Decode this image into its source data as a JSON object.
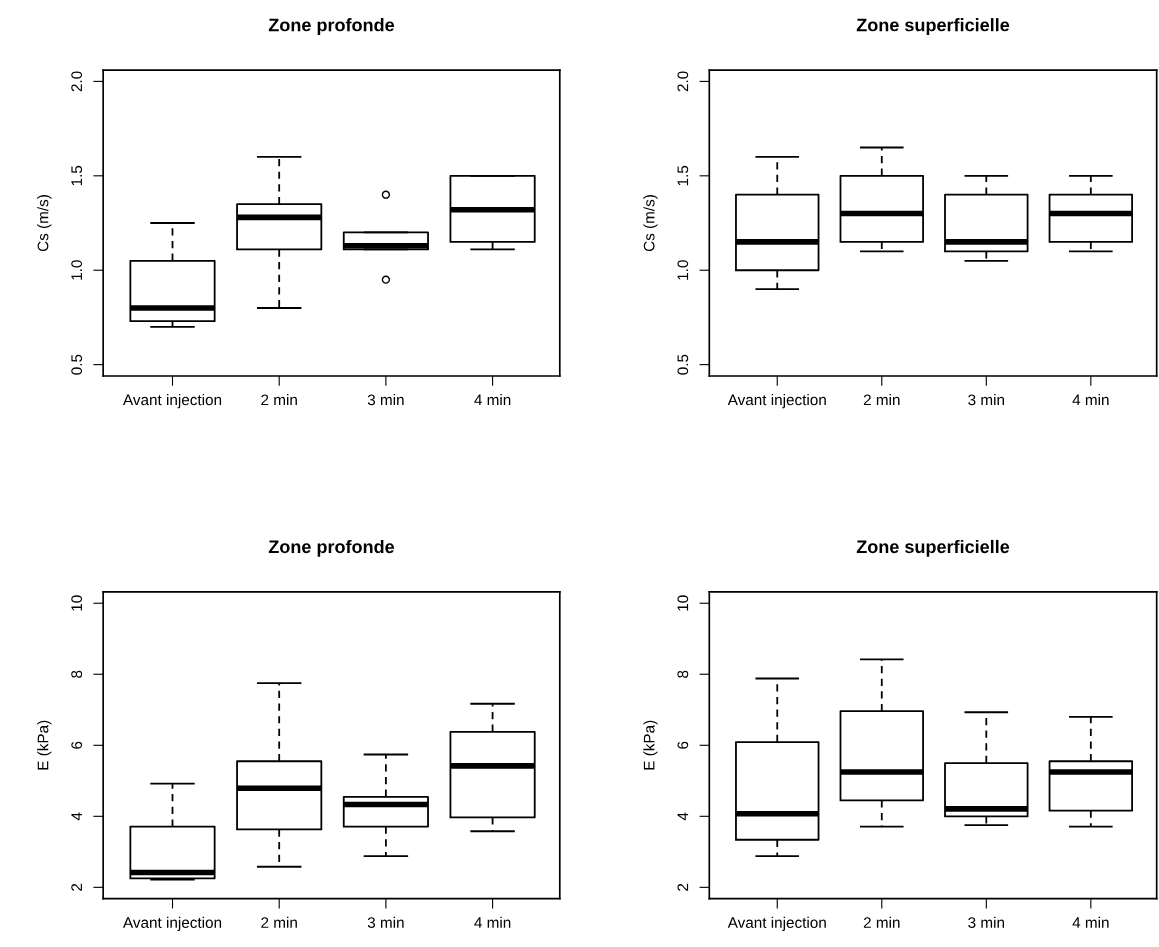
{
  "chart_data": [
    {
      "type": "box",
      "title": "Zone profonde",
      "ylabel": "Cs (m/s)",
      "categories": [
        "Avant injection",
        "2 min",
        "3 min",
        "4 min"
      ],
      "ylim": [
        0.44,
        2.06
      ],
      "yticks": [
        {
          "value": 0.5,
          "label": "0.5"
        },
        {
          "value": 1.0,
          "label": "1.0"
        },
        {
          "value": 1.5,
          "label": "1.5"
        },
        {
          "value": 2.0,
          "label": "2.0"
        }
      ],
      "grid": false,
      "boxes": [
        {
          "low": 0.7,
          "q1": 0.73,
          "median": 0.8,
          "q3": 1.05,
          "high": 1.25
        },
        {
          "low": 0.8,
          "q1": 1.11,
          "median": 1.28,
          "q3": 1.35,
          "high": 1.6
        },
        {
          "low": 1.11,
          "q1": 1.11,
          "median": 1.13,
          "q3": 1.2,
          "high": 1.2,
          "outliers": [
            0.95,
            1.4
          ]
        },
        {
          "low": 1.11,
          "q1": 1.15,
          "median": 1.32,
          "q3": 1.5,
          "high": 1.5
        }
      ]
    },
    {
      "type": "box",
      "title": "Zone superficielle",
      "ylabel": "Cs (m/s)",
      "categories": [
        "Avant injection",
        "2 min",
        "3 min",
        "4 min"
      ],
      "ylim": [
        0.44,
        2.06
      ],
      "yticks": [
        {
          "value": 0.5,
          "label": "0.5"
        },
        {
          "value": 1.0,
          "label": "1.0"
        },
        {
          "value": 1.5,
          "label": "1.5"
        },
        {
          "value": 2.0,
          "label": "2.0"
        }
      ],
      "grid": false,
      "boxes": [
        {
          "low": 0.9,
          "q1": 1.0,
          "median": 1.15,
          "q3": 1.4,
          "high": 1.6
        },
        {
          "low": 1.1,
          "q1": 1.15,
          "median": 1.3,
          "q3": 1.5,
          "high": 1.65
        },
        {
          "low": 1.05,
          "q1": 1.1,
          "median": 1.15,
          "q3": 1.4,
          "high": 1.5
        },
        {
          "low": 1.1,
          "q1": 1.15,
          "median": 1.3,
          "q3": 1.4,
          "high": 1.5
        }
      ]
    },
    {
      "type": "box",
      "title": "Zone profonde",
      "ylabel": "E (kPa)",
      "categories": [
        "Avant injection",
        "2 min",
        "3 min",
        "4 min"
      ],
      "ylim": [
        1.68,
        10.32
      ],
      "yticks": [
        2,
        4,
        6,
        8,
        10
      ],
      "grid": false,
      "boxes": [
        {
          "low": 2.22,
          "q1": 2.25,
          "median": 2.42,
          "q3": 3.71,
          "high": 4.92
        },
        {
          "low": 2.58,
          "q1": 3.63,
          "median": 4.79,
          "q3": 5.55,
          "high": 7.75
        },
        {
          "low": 2.88,
          "q1": 3.71,
          "median": 4.33,
          "q3": 4.55,
          "high": 5.74
        },
        {
          "low": 3.58,
          "q1": 3.97,
          "median": 5.42,
          "q3": 6.38,
          "high": 7.17
        }
      ]
    },
    {
      "type": "box",
      "title": "Zone superficielle",
      "ylabel": "E (kPa)",
      "categories": [
        "Avant injection",
        "2 min",
        "3 min",
        "4 min"
      ],
      "ylim": [
        1.68,
        10.32
      ],
      "yticks": [
        2,
        4,
        6,
        8,
        10
      ],
      "grid": false,
      "boxes": [
        {
          "low": 2.88,
          "q1": 3.34,
          "median": 4.07,
          "q3": 6.09,
          "high": 7.88
        },
        {
          "low": 3.71,
          "q1": 4.45,
          "median": 5.25,
          "q3": 6.96,
          "high": 8.42
        },
        {
          "low": 3.75,
          "q1": 4.0,
          "median": 4.21,
          "q3": 5.5,
          "high": 6.93
        },
        {
          "low": 3.71,
          "q1": 4.16,
          "median": 5.25,
          "q3": 5.55,
          "high": 6.8
        }
      ]
    }
  ]
}
